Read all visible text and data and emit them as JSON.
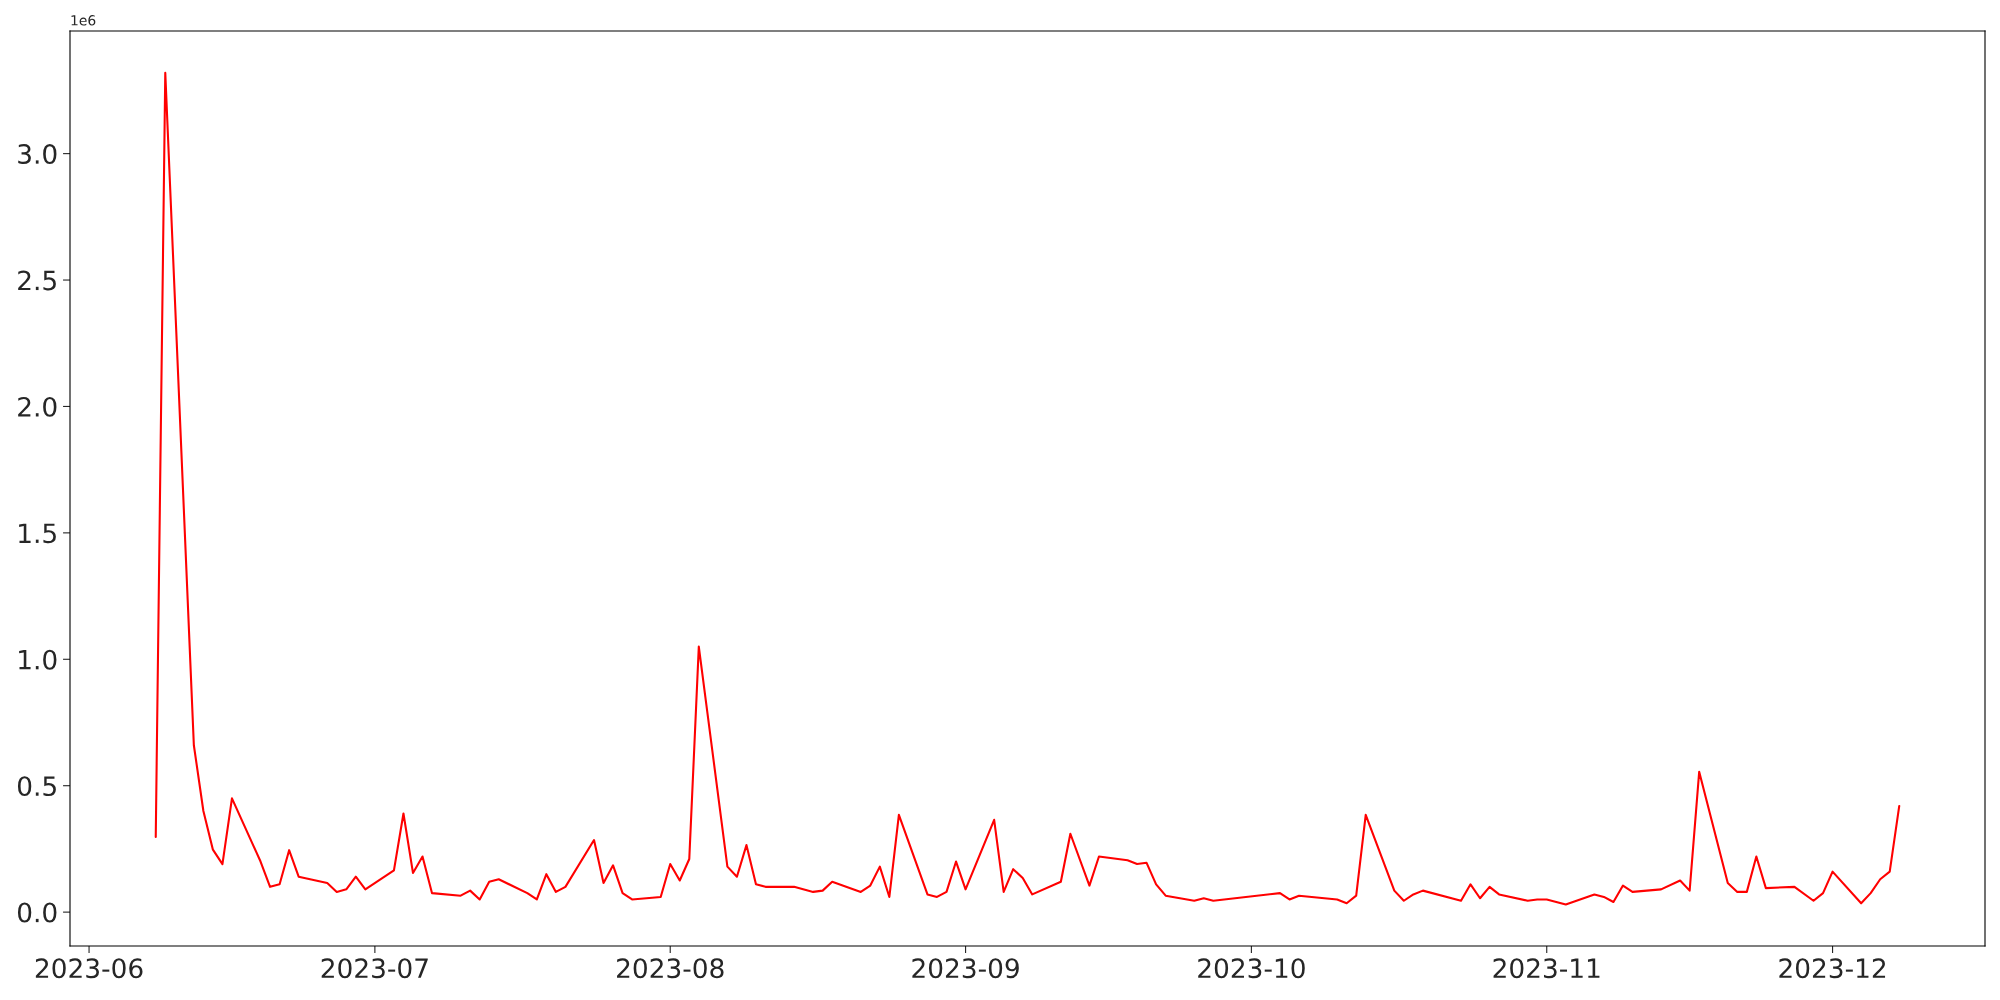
{
  "chart_data": {
    "type": "line",
    "x": [
      "2023-06-08",
      "2023-06-09",
      "2023-06-12",
      "2023-06-13",
      "2023-06-14",
      "2023-06-15",
      "2023-06-16",
      "2023-06-19",
      "2023-06-20",
      "2023-06-21",
      "2023-06-22",
      "2023-06-23",
      "2023-06-26",
      "2023-06-27",
      "2023-06-28",
      "2023-06-29",
      "2023-06-30",
      "2023-07-03",
      "2023-07-04",
      "2023-07-05",
      "2023-07-06",
      "2023-07-07",
      "2023-07-10",
      "2023-07-11",
      "2023-07-12",
      "2023-07-13",
      "2023-07-14",
      "2023-07-17",
      "2023-07-18",
      "2023-07-19",
      "2023-07-20",
      "2023-07-21",
      "2023-07-24",
      "2023-07-25",
      "2023-07-26",
      "2023-07-27",
      "2023-07-28",
      "2023-07-31",
      "2023-08-01",
      "2023-08-02",
      "2023-08-03",
      "2023-08-04",
      "2023-08-07",
      "2023-08-08",
      "2023-08-09",
      "2023-08-10",
      "2023-08-11",
      "2023-08-14",
      "2023-08-16",
      "2023-08-17",
      "2023-08-18",
      "2023-08-21",
      "2023-08-22",
      "2023-08-23",
      "2023-08-24",
      "2023-08-25",
      "2023-08-28",
      "2023-08-29",
      "2023-08-30",
      "2023-08-31",
      "2023-09-01",
      "2023-09-04",
      "2023-09-05",
      "2023-09-06",
      "2023-09-07",
      "2023-09-08",
      "2023-09-11",
      "2023-09-12",
      "2023-09-14",
      "2023-09-15",
      "2023-09-18",
      "2023-09-19",
      "2023-09-20",
      "2023-09-21",
      "2023-09-22",
      "2023-09-25",
      "2023-09-26",
      "2023-09-27",
      "2023-10-04",
      "2023-10-05",
      "2023-10-06",
      "2023-10-10",
      "2023-10-11",
      "2023-10-12",
      "2023-10-13",
      "2023-10-16",
      "2023-10-17",
      "2023-10-18",
      "2023-10-19",
      "2023-10-23",
      "2023-10-24",
      "2023-10-25",
      "2023-10-26",
      "2023-10-27",
      "2023-10-30",
      "2023-10-31",
      "2023-11-01",
      "2023-11-03",
      "2023-11-06",
      "2023-11-07",
      "2023-11-08",
      "2023-11-09",
      "2023-11-10",
      "2023-11-13",
      "2023-11-15",
      "2023-11-16",
      "2023-11-17",
      "2023-11-20",
      "2023-11-21",
      "2023-11-22",
      "2023-11-23",
      "2023-11-24",
      "2023-11-27",
      "2023-11-29",
      "2023-11-30",
      "2023-12-01",
      "2023-12-04",
      "2023-12-05",
      "2023-12-06",
      "2023-12-07",
      "2023-12-08"
    ],
    "series": [
      {
        "color": "#ff0000",
        "values": [
          0.297,
          3.32,
          0.66,
          0.4,
          0.247,
          0.19,
          0.45,
          0.2,
          0.1,
          0.11,
          0.245,
          0.14,
          0.115,
          0.08,
          0.09,
          0.14,
          0.09,
          0.165,
          0.39,
          0.155,
          0.22,
          0.075,
          0.065,
          0.085,
          0.05,
          0.12,
          0.13,
          0.075,
          0.05,
          0.15,
          0.08,
          0.1,
          0.285,
          0.115,
          0.185,
          0.075,
          0.05,
          0.06,
          0.19,
          0.125,
          0.21,
          1.05,
          0.18,
          0.14,
          0.265,
          0.11,
          0.1,
          0.1,
          0.08,
          0.085,
          0.12,
          0.08,
          0.105,
          0.18,
          0.06,
          0.385,
          0.07,
          0.06,
          0.08,
          0.2,
          0.09,
          0.365,
          0.08,
          0.17,
          0.135,
          0.07,
          0.12,
          0.31,
          0.105,
          0.22,
          0.205,
          0.19,
          0.195,
          0.11,
          0.065,
          0.045,
          0.055,
          0.045,
          0.075,
          0.05,
          0.065,
          0.05,
          0.035,
          0.065,
          0.385,
          0.085,
          0.045,
          0.07,
          0.085,
          0.045,
          0.11,
          0.055,
          0.1,
          0.07,
          0.045,
          0.05,
          0.05,
          0.03,
          0.07,
          0.06,
          0.04,
          0.105,
          0.08,
          0.09,
          0.125,
          0.085,
          0.555,
          0.115,
          0.08,
          0.08,
          0.22,
          0.095,
          0.1,
          0.045,
          0.075,
          0.16,
          0.035,
          0.075,
          0.13,
          0.16,
          0.42
        ]
      }
    ],
    "xlim": [
      "2023-05-30",
      "2023-12-17"
    ],
    "xticks": [
      {
        "value": "2023-06-01",
        "label": "2023-06"
      },
      {
        "value": "2023-07-01",
        "label": "2023-07"
      },
      {
        "value": "2023-08-01",
        "label": "2023-08"
      },
      {
        "value": "2023-09-01",
        "label": "2023-09"
      },
      {
        "value": "2023-10-01",
        "label": "2023-10"
      },
      {
        "value": "2023-11-01",
        "label": "2023-11"
      },
      {
        "value": "2023-12-01",
        "label": "2023-12"
      }
    ],
    "ylim": [
      -0.134,
      3.485
    ],
    "yticks": [
      {
        "value": 0,
        "label": "0.0"
      },
      0.5,
      {
        "value": 1,
        "label": "1.0"
      },
      1.5,
      {
        "value": 2,
        "label": "2.0"
      },
      2.5,
      {
        "value": 3,
        "label": "3.0"
      }
    ],
    "annotations": [
      "1e6"
    ],
    "grid": false,
    "marker": "none",
    "line_style": "solid"
  }
}
